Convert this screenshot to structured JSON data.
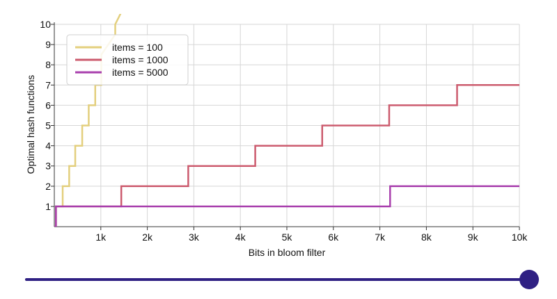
{
  "chart_data": {
    "type": "line",
    "xlabel": "Bits in bloom filter",
    "ylabel": "Optimal hash functions",
    "xlim": [
      0,
      10000
    ],
    "ylim": [
      0,
      10
    ],
    "x_ticks": [
      1000,
      2000,
      3000,
      4000,
      5000,
      6000,
      7000,
      8000,
      9000,
      10000
    ],
    "x_tick_labels": [
      "1k",
      "2k",
      "3k",
      "4k",
      "5k",
      "6k",
      "7k",
      "8k",
      "9k",
      "10k"
    ],
    "y_ticks": [
      1,
      2,
      3,
      4,
      5,
      6,
      7,
      8,
      9,
      10
    ],
    "y_tick_labels": [
      "1",
      "2",
      "3",
      "4",
      "5",
      "6",
      "7",
      "8",
      "9",
      "10"
    ],
    "grid": true,
    "legend_position": "top-left",
    "series": [
      {
        "name": "items = 100",
        "color": "#e3cf7d",
        "x": [
          0,
          35,
          35,
          180,
          180,
          320,
          320,
          450,
          450,
          600,
          600,
          740,
          740,
          880,
          880,
          1010,
          1010,
          1310,
          1310,
          1440
        ],
        "y": [
          0,
          0,
          1,
          1,
          2,
          2,
          3,
          3,
          4,
          4,
          5,
          5,
          6,
          6,
          7,
          7,
          8.5,
          9.5,
          10,
          10.6
        ]
      },
      {
        "name": "items = 1000",
        "color": "#cc5b6e",
        "x": [
          0,
          35,
          35,
          1440,
          1440,
          2880,
          2880,
          4320,
          4320,
          5760,
          5760,
          7200,
          7200,
          8660,
          8660,
          10000
        ],
        "y": [
          0,
          0,
          1,
          1,
          2,
          2,
          3,
          3,
          4,
          4,
          5,
          5,
          6,
          6,
          7,
          7
        ]
      },
      {
        "name": "items = 5000",
        "color": "#a83fad",
        "x": [
          0,
          35,
          35,
          7220,
          7220,
          10000
        ],
        "y": [
          0,
          0,
          1,
          1,
          2,
          2
        ]
      }
    ]
  },
  "slider": {
    "value_fraction": 1.0,
    "color": "#2f2083"
  }
}
